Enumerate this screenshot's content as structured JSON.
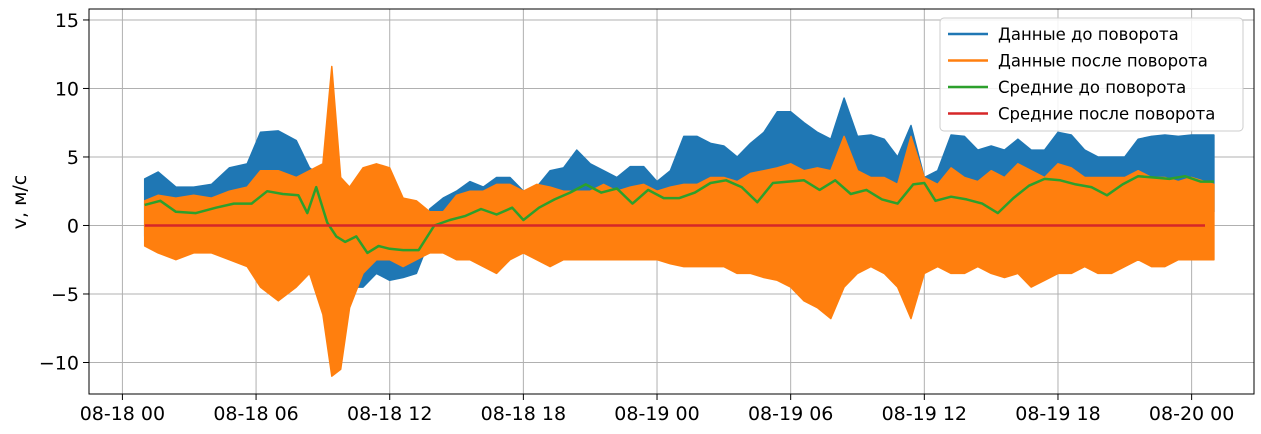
{
  "chart_data": {
    "type": "line",
    "ylabel": "v, м/с",
    "xlabel": "",
    "ylim": [
      -12.3,
      15.8
    ],
    "y_ticks": [
      -10,
      -5,
      0,
      5,
      10,
      15
    ],
    "y_tick_labels": [
      "−10",
      "−5",
      "0",
      "5",
      "10",
      "15"
    ],
    "xlim_hours": [
      -1.5,
      50.8
    ],
    "x_ticks_hours": [
      0,
      6,
      12,
      18,
      24,
      30,
      36,
      42,
      48
    ],
    "x_tick_labels": [
      "08-18 00",
      "08-18 06",
      "08-18 12",
      "08-18 18",
      "08-19 00",
      "08-19 06",
      "08-19 12",
      "08-19 18",
      "08-20 00"
    ],
    "grid": true,
    "legend_position": "top-right",
    "series": [
      {
        "name": "Данные до поворота",
        "color": "#1f77b4",
        "kind": "envelope",
        "x": [
          1.0,
          1.6,
          2.4,
          3.2,
          4.0,
          4.8,
          5.6,
          6.2,
          7.0,
          7.8,
          8.4,
          9.0,
          9.4,
          9.8,
          10.2,
          10.8,
          11.4,
          12.0,
          12.6,
          13.2,
          13.8,
          14.4,
          15.0,
          15.6,
          16.2,
          16.8,
          17.4,
          18.0,
          18.6,
          19.2,
          19.8,
          20.4,
          21.0,
          21.6,
          22.2,
          22.8,
          23.4,
          24.0,
          24.6,
          25.2,
          25.8,
          26.4,
          27.0,
          27.6,
          28.2,
          28.8,
          29.4,
          30.0,
          30.6,
          31.2,
          31.8,
          32.4,
          33.0,
          33.6,
          34.2,
          34.8,
          35.4,
          36.0,
          36.6,
          37.2,
          37.8,
          38.4,
          39.0,
          39.6,
          40.2,
          40.8,
          41.4,
          42.0,
          42.6,
          43.2,
          43.8,
          44.4,
          45.0,
          45.6,
          46.2,
          46.8,
          47.4,
          48.0,
          48.6,
          49.0
        ],
        "high": [
          3.4,
          3.9,
          2.8,
          2.8,
          3.0,
          4.2,
          4.5,
          6.8,
          6.9,
          6.2,
          4.2,
          3.5,
          3.0,
          -1.0,
          -2.0,
          -1.5,
          -0.5,
          -1.0,
          -1.5,
          -1.5,
          1.2,
          2.0,
          2.5,
          3.2,
          2.8,
          3.5,
          3.5,
          2.5,
          2.8,
          4.0,
          4.2,
          5.5,
          4.5,
          4.0,
          3.5,
          4.3,
          4.3,
          3.2,
          4.0,
          6.5,
          6.5,
          6.0,
          5.8,
          5.0,
          6.0,
          6.8,
          8.3,
          8.3,
          7.5,
          6.8,
          6.3,
          9.3,
          6.5,
          6.6,
          6.3,
          5.0,
          7.3,
          3.5,
          4.0,
          6.6,
          6.5,
          5.5,
          5.8,
          5.5,
          6.3,
          5.5,
          5.5,
          6.8,
          6.6,
          5.5,
          5.0,
          5.0,
          5.0,
          6.3,
          6.5,
          6.6,
          6.5,
          6.6,
          6.6,
          6.6
        ],
        "low": [
          -0.8,
          0.2,
          0.5,
          0.3,
          0.0,
          0.2,
          0.5,
          0.8,
          0.5,
          -0.5,
          -1.0,
          -2.0,
          -3.5,
          -5.3,
          -4.5,
          -4.5,
          -3.5,
          -4.0,
          -3.8,
          -3.5,
          -1.0,
          -0.5,
          0.0,
          0.3,
          0.0,
          0.3,
          0.5,
          -0.5,
          0.0,
          0.5,
          0.5,
          1.0,
          0.5,
          0.5,
          0.2,
          0.5,
          0.5,
          0.0,
          0.3,
          1.0,
          1.0,
          0.5,
          0.3,
          0.5,
          1.0,
          1.3,
          1.5,
          1.5,
          1.0,
          0.5,
          0.8,
          1.5,
          0.8,
          0.5,
          0.8,
          0.3,
          1.0,
          0.0,
          0.3,
          0.5,
          1.0,
          0.5,
          0.8,
          0.5,
          0.8,
          0.5,
          0.5,
          1.0,
          1.0,
          0.5,
          0.5,
          0.5,
          0.5,
          0.8,
          1.0,
          1.0,
          1.0,
          1.0,
          1.0,
          1.0
        ]
      },
      {
        "name": "Данные после поворота",
        "color": "#ff7f0e",
        "kind": "envelope",
        "x": [
          1.0,
          1.6,
          2.4,
          3.2,
          4.0,
          4.8,
          5.6,
          6.2,
          7.0,
          7.8,
          8.4,
          9.0,
          9.4,
          9.8,
          10.2,
          10.8,
          11.4,
          12.0,
          12.6,
          13.2,
          13.8,
          14.4,
          15.0,
          15.6,
          16.2,
          16.8,
          17.4,
          18.0,
          18.6,
          19.2,
          19.8,
          20.4,
          21.0,
          21.6,
          22.2,
          22.8,
          23.4,
          24.0,
          24.6,
          25.2,
          25.8,
          26.4,
          27.0,
          27.6,
          28.2,
          28.8,
          29.4,
          30.0,
          30.6,
          31.2,
          31.8,
          32.4,
          33.0,
          33.6,
          34.2,
          34.8,
          35.4,
          36.0,
          36.6,
          37.2,
          37.8,
          38.4,
          39.0,
          39.6,
          40.2,
          40.8,
          41.4,
          42.0,
          42.6,
          43.2,
          43.8,
          44.4,
          45.0,
          45.6,
          46.2,
          46.8,
          47.4,
          48.0,
          48.6,
          49.0
        ],
        "high": [
          1.8,
          2.2,
          2.0,
          2.2,
          2.0,
          2.5,
          2.8,
          4.0,
          4.0,
          3.5,
          4.0,
          4.5,
          11.6,
          3.5,
          2.8,
          4.2,
          4.5,
          4.2,
          2.0,
          1.8,
          1.0,
          1.0,
          2.2,
          2.5,
          2.5,
          3.0,
          3.0,
          2.5,
          3.0,
          2.8,
          2.5,
          2.5,
          2.5,
          3.0,
          2.5,
          2.8,
          3.0,
          2.5,
          2.8,
          3.0,
          3.0,
          3.5,
          3.5,
          3.2,
          3.8,
          4.0,
          4.2,
          4.5,
          4.0,
          4.2,
          4.0,
          6.5,
          4.0,
          3.5,
          3.5,
          3.0,
          6.5,
          3.5,
          3.0,
          4.2,
          3.5,
          3.2,
          4.0,
          3.5,
          4.5,
          4.0,
          3.5,
          4.5,
          4.2,
          3.5,
          3.5,
          3.5,
          3.5,
          4.0,
          3.5,
          3.5,
          3.2,
          3.5,
          3.2,
          3.0
        ],
        "low": [
          -1.5,
          -2.0,
          -2.5,
          -2.0,
          -2.0,
          -2.5,
          -3.0,
          -4.5,
          -5.5,
          -4.5,
          -3.5,
          -6.5,
          -11.0,
          -10.5,
          -6.0,
          -3.5,
          -2.5,
          -2.5,
          -3.0,
          -2.5,
          -2.0,
          -2.0,
          -2.5,
          -2.5,
          -3.0,
          -3.5,
          -2.5,
          -2.0,
          -2.5,
          -3.0,
          -2.5,
          -2.5,
          -2.5,
          -2.5,
          -2.5,
          -2.5,
          -2.5,
          -2.5,
          -2.8,
          -3.0,
          -3.0,
          -3.0,
          -3.0,
          -3.5,
          -3.5,
          -3.8,
          -4.0,
          -4.5,
          -5.5,
          -6.0,
          -6.8,
          -4.5,
          -3.5,
          -3.0,
          -3.5,
          -4.5,
          -6.8,
          -3.5,
          -3.0,
          -3.5,
          -3.5,
          -3.0,
          -3.5,
          -3.8,
          -3.5,
          -4.5,
          -4.0,
          -3.5,
          -3.5,
          -3.0,
          -3.5,
          -3.5,
          -3.0,
          -2.5,
          -3.0,
          -3.0,
          -2.5,
          -2.5,
          -2.5,
          -2.5
        ]
      },
      {
        "name": "Средние до поворота",
        "color": "#2ca02c",
        "kind": "line",
        "x": [
          1.0,
          1.7,
          2.4,
          3.3,
          4.2,
          5.0,
          5.8,
          6.5,
          7.2,
          7.9,
          8.3,
          8.7,
          9.2,
          9.6,
          10.0,
          10.5,
          11.0,
          11.5,
          12.0,
          12.6,
          13.3,
          14.0,
          14.7,
          15.4,
          16.1,
          16.8,
          17.5,
          18.0,
          18.7,
          19.4,
          20.1,
          20.8,
          21.5,
          22.2,
          22.9,
          23.6,
          24.3,
          25.0,
          25.7,
          26.4,
          27.1,
          27.8,
          28.5,
          29.2,
          29.9,
          30.6,
          31.3,
          32.0,
          32.7,
          33.4,
          34.1,
          34.8,
          35.5,
          36.0,
          36.5,
          37.2,
          37.9,
          38.6,
          39.3,
          40.0,
          40.7,
          41.4,
          42.1,
          42.8,
          43.5,
          44.2,
          44.9,
          45.6,
          46.3,
          47.0,
          47.7,
          48.4,
          49.0
        ],
        "y": [
          1.5,
          1.8,
          1.0,
          0.9,
          1.3,
          1.6,
          1.6,
          2.5,
          2.3,
          2.2,
          0.9,
          2.8,
          0.2,
          -0.8,
          -1.2,
          -0.8,
          -2.0,
          -1.5,
          -1.7,
          -1.8,
          -1.8,
          0.0,
          0.4,
          0.7,
          1.2,
          0.8,
          1.3,
          0.4,
          1.3,
          1.9,
          2.4,
          3.0,
          2.4,
          2.7,
          1.6,
          2.6,
          2.0,
          2.0,
          2.4,
          3.1,
          3.3,
          2.8,
          1.7,
          3.1,
          3.2,
          3.3,
          2.6,
          3.3,
          2.3,
          2.6,
          1.9,
          1.6,
          3.0,
          3.1,
          1.8,
          2.1,
          1.9,
          1.6,
          0.9,
          2.0,
          2.9,
          3.4,
          3.3,
          3.0,
          2.8,
          2.2,
          3.0,
          3.6,
          3.5,
          3.4,
          3.6,
          3.2,
          3.2
        ]
      },
      {
        "name": "Средние после поворота",
        "color": "#d62728",
        "kind": "line",
        "x": [
          1.0,
          48.6
        ],
        "y": [
          0.0,
          0.0
        ]
      }
    ]
  }
}
